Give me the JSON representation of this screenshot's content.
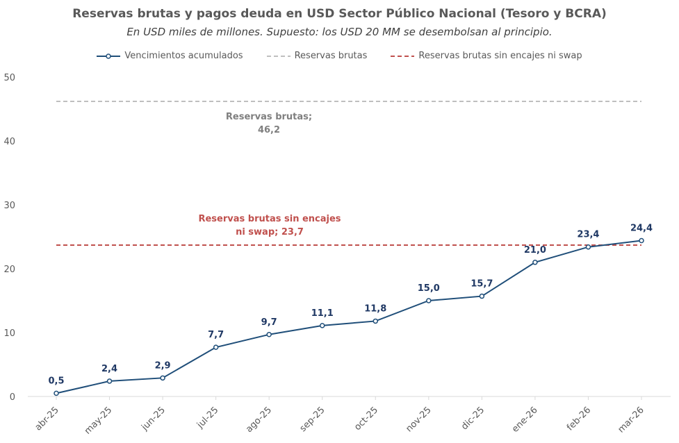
{
  "chart_data": {
    "type": "line",
    "title": "Reservas brutas  y pagos deuda  en USD Sector Público Nacional (Tesoro y BCRA)",
    "subtitle": "En USD miles de millones. Supuesto: los USD 20 MM se desembolsan al principio.",
    "categories": [
      "abr-25",
      "may-25",
      "jun-25",
      "jul-25",
      "ago-25",
      "sep-25",
      "oct-25",
      "nov-25",
      "dic-25",
      "ene-26",
      "feb-26",
      "mar-26"
    ],
    "series": [
      {
        "name": "Vencimientos acumulados",
        "values": [
          0.5,
          2.4,
          2.9,
          7.7,
          9.7,
          11.1,
          11.8,
          15.0,
          15.7,
          21.0,
          23.4,
          24.4
        ],
        "labels": [
          "0,5",
          "2,4",
          "2,9",
          "7,7",
          "9,7",
          "11,1",
          "11,8",
          "15,0",
          "15,7",
          "21,0",
          "23,4",
          "24,4"
        ],
        "color": "#1F4E79",
        "style": "solid-markers"
      },
      {
        "name": "Reservas brutas",
        "values": [
          46.2,
          46.2,
          46.2,
          46.2,
          46.2,
          46.2,
          46.2,
          46.2,
          46.2,
          46.2,
          46.2,
          46.2
        ],
        "color": "#BFBFBF",
        "style": "dashed"
      },
      {
        "name": "Reservas brutas sin encajes ni swap",
        "values": [
          23.7,
          23.7,
          23.7,
          23.7,
          23.7,
          23.7,
          23.7,
          23.7,
          23.7,
          23.7,
          23.7,
          23.7
        ],
        "color": "#C0504D",
        "style": "dashed"
      }
    ],
    "annotations": {
      "gray_line1": "Reservas brutas;",
      "gray_line2": "46,2",
      "red_line1": "Reservas brutas sin encajes",
      "red_line2": "ni swap; 23,7"
    },
    "y_ticks": [
      "0",
      "10",
      "20",
      "30",
      "40",
      "50"
    ],
    "ylim": [
      0,
      50
    ],
    "grid": false,
    "legend_position": "top"
  }
}
